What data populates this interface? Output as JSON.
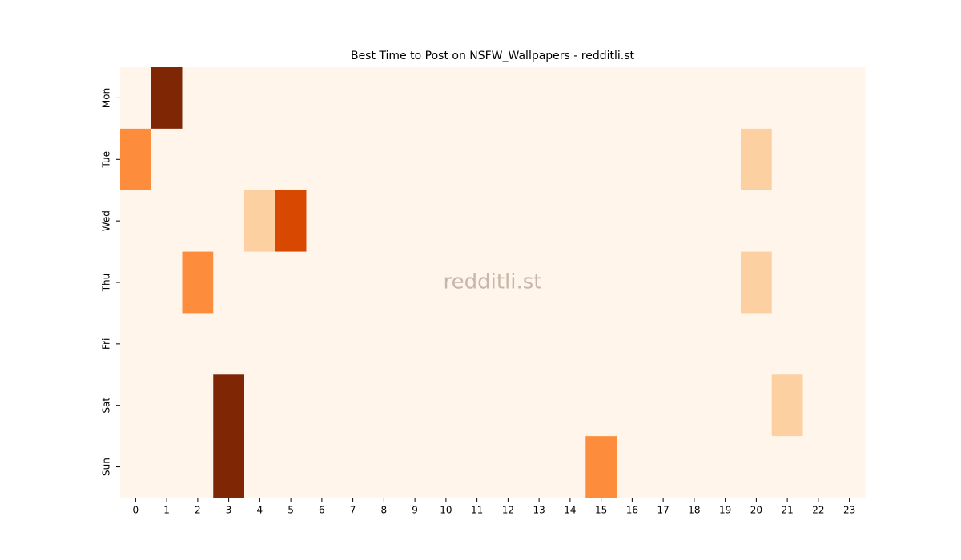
{
  "chart_data": {
    "type": "heatmap",
    "title": "Best Time to Post on NSFW_Wallpapers - redditli.st",
    "watermark": "redditli.st",
    "x": [
      "0",
      "1",
      "2",
      "3",
      "4",
      "5",
      "6",
      "7",
      "8",
      "9",
      "10",
      "11",
      "12",
      "13",
      "14",
      "15",
      "16",
      "17",
      "18",
      "19",
      "20",
      "21",
      "22",
      "23"
    ],
    "y": [
      "Mon",
      "Tue",
      "Wed",
      "Thu",
      "Fri",
      "Sat",
      "Sun"
    ],
    "values": [
      [
        0,
        4,
        0,
        0,
        0,
        0,
        0,
        0,
        0,
        0,
        0,
        0,
        0,
        0,
        0,
        0,
        0,
        0,
        0,
        0,
        0,
        0,
        0,
        0
      ],
      [
        2,
        0,
        0,
        0,
        0,
        0,
        0,
        0,
        0,
        0,
        0,
        0,
        0,
        0,
        0,
        0,
        0,
        0,
        0,
        0,
        1,
        0,
        0,
        0
      ],
      [
        0,
        0,
        0,
        0,
        1,
        3,
        0,
        0,
        0,
        0,
        0,
        0,
        0,
        0,
        0,
        0,
        0,
        0,
        0,
        0,
        0,
        0,
        0,
        0
      ],
      [
        0,
        0,
        2,
        0,
        0,
        0,
        0,
        0,
        0,
        0,
        0,
        0,
        0,
        0,
        0,
        0,
        0,
        0,
        0,
        0,
        1,
        0,
        0,
        0
      ],
      [
        0,
        0,
        0,
        0,
        0,
        0,
        0,
        0,
        0,
        0,
        0,
        0,
        0,
        0,
        0,
        0,
        0,
        0,
        0,
        0,
        0,
        0,
        0,
        0
      ],
      [
        0,
        0,
        0,
        4,
        0,
        0,
        0,
        0,
        0,
        0,
        0,
        0,
        0,
        0,
        0,
        0,
        0,
        0,
        0,
        0,
        0,
        1,
        0,
        0
      ],
      [
        0,
        0,
        0,
        4,
        0,
        0,
        0,
        0,
        0,
        0,
        0,
        0,
        0,
        0,
        0,
        2,
        0,
        0,
        0,
        0,
        0,
        0,
        0,
        0
      ]
    ],
    "colorscale": [
      "#fff5eb",
      "#fdd0a2",
      "#fd8d3c",
      "#d94801",
      "#7f2704"
    ]
  }
}
